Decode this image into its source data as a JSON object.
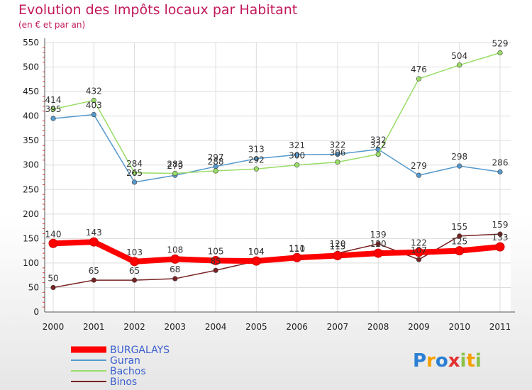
{
  "chart_data": {
    "type": "line",
    "title": "Evolution des Impôts locaux par Habitant",
    "subtitle": "(en € et par an)",
    "x": [
      "2000",
      "2001",
      "2002",
      "2003",
      "2004",
      "2005",
      "2006",
      "2007",
      "2008",
      "2009",
      "2010",
      "2011"
    ],
    "ylim": [
      0,
      550
    ],
    "yticks": [
      0,
      50,
      100,
      150,
      200,
      250,
      300,
      350,
      400,
      450,
      500,
      550
    ],
    "grid": true,
    "legend_position": "bottom-left",
    "series": [
      {
        "name": "BURGALAYS",
        "color": "#ff0000",
        "thick": true,
        "values": [
          140,
          143,
          103,
          108,
          105,
          104,
          111,
          115,
          120,
          122,
          125,
          133
        ],
        "labels": [
          "140",
          "143",
          "103",
          "108",
          "105",
          "104",
          "111",
          "115",
          "120",
          "122",
          "125",
          "133"
        ]
      },
      {
        "name": "Guran",
        "color": "#5599cc",
        "thick": false,
        "values": [
          395,
          403,
          265,
          279,
          297,
          313,
          321,
          322,
          332,
          279,
          298,
          286
        ],
        "labels": [
          "395",
          "403",
          "265",
          "279",
          "297",
          "313",
          "321",
          "322",
          "332",
          "279",
          "298",
          "286"
        ]
      },
      {
        "name": "Bachos",
        "color": "#99dd66",
        "thick": false,
        "values": [
          414,
          432,
          284,
          283,
          288,
          292,
          300,
          306,
          322,
          476,
          504,
          529
        ],
        "labels": [
          "414",
          "432",
          "284",
          "283",
          "288",
          "292",
          "300",
          "306",
          "322",
          "476",
          "504",
          "529"
        ]
      },
      {
        "name": "Binos",
        "color": "#772222",
        "thick": false,
        "values": [
          50,
          65,
          65,
          68,
          85,
          104,
          110,
          120,
          139,
          107,
          155,
          159
        ],
        "labels": [
          "50",
          "65",
          "65",
          "68",
          "85",
          "104",
          "110",
          "120",
          "139",
          "107",
          "155",
          "159"
        ]
      }
    ]
  },
  "logo": {
    "text": "Proxiti",
    "letter_colors": [
      "#2a7fd4",
      "#f5a000",
      "#2a7fd4",
      "#e33030",
      "#8bc34a",
      "#f5a000",
      "#8bc34a"
    ]
  }
}
